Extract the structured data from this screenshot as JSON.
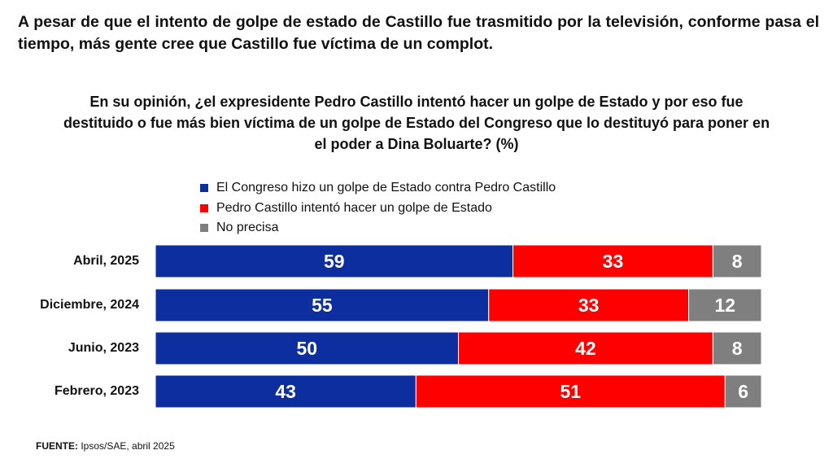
{
  "headline": "A pesar de que el intento de golpe de estado de Castillo fue trasmitido por la televisión, conforme pasa el tiempo, más gente cree que Castillo fue víctima de un complot.",
  "source": {
    "label": "FUENTE:",
    "text": "Ipsos/SAE, abril 2025"
  },
  "chart_data": {
    "type": "bar",
    "orientation": "horizontal",
    "stacked": true,
    "title": "En su opinión, ¿el expresidente Pedro Castillo intentó hacer un golpe de Estado y por eso fue destituido o fue más bien víctima de un golpe de Estado del Congreso que lo destituyó para poner en el poder a Dina Boluarte? (%)",
    "legend_position": "top",
    "categories": [
      "Abril, 2025",
      "Diciembre, 2024",
      "Junio, 2023",
      "Febrero, 2023"
    ],
    "series": [
      {
        "name": "El Congreso hizo un golpe de Estado contra Pedro Castillo",
        "color": "#0d2e9f",
        "values": [
          59,
          55,
          50,
          43
        ]
      },
      {
        "name": "Pedro Castillo intentó hacer un golpe de Estado",
        "color": "#fe0000",
        "values": [
          33,
          33,
          42,
          51
        ]
      },
      {
        "name": "No precisa",
        "color": "#7f7f7f",
        "values": [
          8,
          12,
          8,
          6
        ]
      }
    ]
  }
}
